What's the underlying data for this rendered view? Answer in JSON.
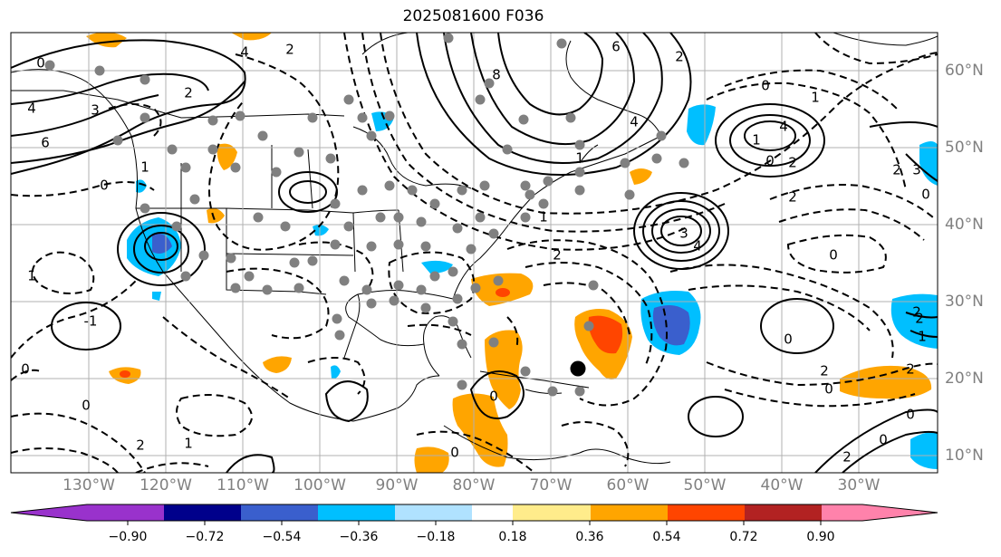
{
  "title": "2025081600 F036",
  "map": {
    "lon_labels": [
      "130°W",
      "120°W",
      "110°W",
      "100°W",
      "90°W",
      "80°W",
      "70°W",
      "60°W",
      "50°W",
      "40°W",
      "30°W"
    ],
    "lat_labels": [
      "60°N",
      "50°N",
      "40°N",
      "30°N",
      "20°N",
      "10°N"
    ],
    "contour_labels": [
      "0",
      "4",
      "6",
      "2",
      "3",
      "1",
      "0",
      "2",
      "4",
      "8",
      "6",
      "4",
      "2",
      "1",
      "0",
      "1",
      "0",
      "4",
      "3",
      "2",
      "1",
      "4",
      "2",
      "0",
      "2",
      "3",
      "0",
      "2",
      "1",
      "-1",
      "1",
      "0",
      "2",
      "1",
      "0",
      "0",
      "0",
      "2",
      "0",
      "0",
      "2",
      "0",
      "2",
      "2",
      "2",
      "1",
      "0"
    ],
    "marker_color": "#808080",
    "storm_marker_color": "#000000"
  },
  "colorbar": {
    "ticks": [
      "−0.90",
      "−0.72",
      "−0.54",
      "−0.36",
      "−0.18",
      "0.18",
      "0.36",
      "0.54",
      "0.72",
      "0.90"
    ],
    "colors": [
      "#9932cc",
      "#00008b",
      "#3a5fcd",
      "#00bfff",
      "#b0e2ff",
      "#ffffff",
      "#ffec8b",
      "#ffa500",
      "#ff4500",
      "#b22222",
      "#ff82ab"
    ]
  }
}
